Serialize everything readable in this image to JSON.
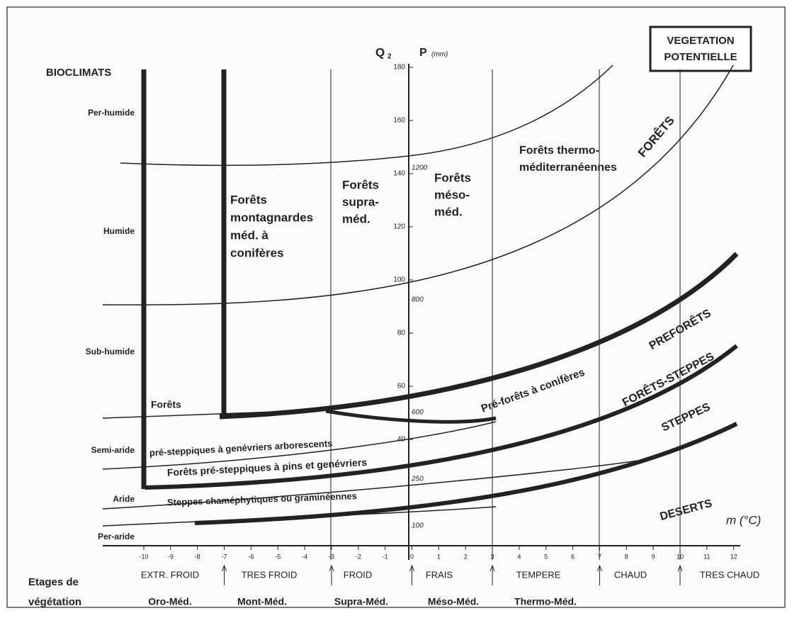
{
  "header": {
    "bioclimats": "BIOCLIMATS",
    "box": [
      "VEGETATION",
      "POTENTIELLE"
    ],
    "q_axis": "Q",
    "q_sub": "2",
    "p_axis": "P",
    "p_unit": "(mm)",
    "m_axis": "m (°C)"
  },
  "bioclimates": [
    "Per-humide",
    "Humide",
    "Sub-humide",
    "Semi-aride",
    "Aride",
    "Per-aride"
  ],
  "q_ticks": [
    180,
    160,
    140,
    120,
    100,
    80,
    60,
    40
  ],
  "p_ticks": [
    1200,
    800,
    600,
    250,
    100
  ],
  "m_ticks": [
    -10,
    -9,
    -8,
    -7,
    -6,
    -5,
    -4,
    -3,
    -2,
    -1,
    0,
    1,
    2,
    3,
    4,
    5,
    6,
    7,
    8,
    9,
    10,
    11,
    12
  ],
  "thermal": [
    "EXTR. FROID",
    "TRES FROID",
    "FROID",
    "FRAIS",
    "TEMPERE",
    "CHAUD",
    "TRES CHAUD"
  ],
  "stages_title": [
    "Etages de",
    "végétation"
  ],
  "stages": [
    "Oro-Méd.",
    "Mont-Méd.",
    "Supra-Méd.",
    "Méso-Méd.",
    "Thermo-Méd."
  ],
  "regions": {
    "montagnardes": [
      "Forêts",
      "montagnardes",
      "méd. à",
      "conifères"
    ],
    "supra": [
      "Forêts",
      "supra-",
      "méd."
    ],
    "meso": [
      "Forêts",
      "méso-",
      "méd."
    ],
    "thermo": [
      "Forêts thermo-",
      "méditerranéennes"
    ],
    "forets_left": "Forêts",
    "pre_genevriers": "pré-steppiques à genévriers arborescents",
    "pre_pins": "Forêts pré-steppiques à pins et genévriers",
    "steppes_cham": "Steppes chaméphytiques ou graminéennes",
    "pre_coniferes": "Pré-forêts à conifères"
  },
  "vegetation": {
    "forets": "FORÊTS",
    "preforets": "PREFORÊTS",
    "forets_steppes": "FORÊTS-STEPPES",
    "steppes": "STEPPES",
    "deserts": "DESERTS"
  }
}
